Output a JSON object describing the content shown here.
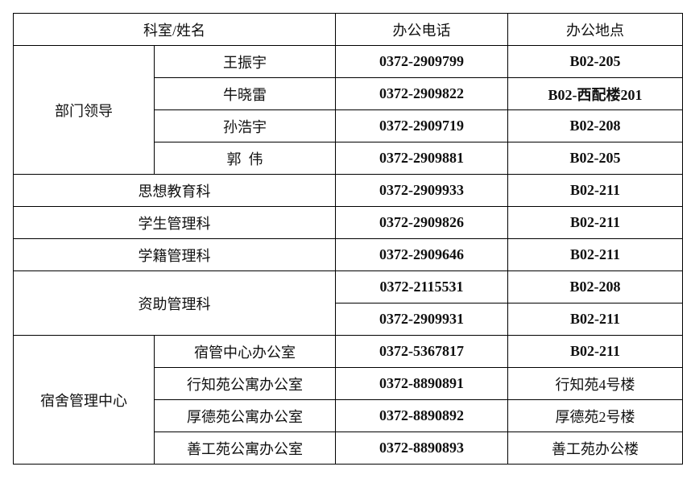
{
  "header": {
    "dept_name": "科室/姓名",
    "phone": "办公电话",
    "location": "办公地点"
  },
  "leaders": {
    "group": "部门领导",
    "rows": [
      {
        "name": "王振宇",
        "phone": "0372-2909799",
        "location": "B02-205"
      },
      {
        "name": "牛晓雷",
        "phone": "0372-2909822",
        "location": "B02-西配楼201"
      },
      {
        "name": "孙浩宇",
        "phone": "0372-2909719",
        "location": "B02-208"
      },
      {
        "name": "郭  伟",
        "phone": "0372-2909881",
        "location": "B02-205"
      }
    ]
  },
  "sections": [
    {
      "name": "思想教育科",
      "phone": "0372-2909933",
      "location": "B02-211"
    },
    {
      "name": "学生管理科",
      "phone": "0372-2909826",
      "location": "B02-211"
    },
    {
      "name": "学籍管理科",
      "phone": "0372-2909646",
      "location": "B02-211"
    }
  ],
  "aid": {
    "name": "资助管理科",
    "rows": [
      {
        "phone": "0372-2115531",
        "location": "B02-208"
      },
      {
        "phone": "0372-2909931",
        "location": "B02-211"
      }
    ]
  },
  "dorm": {
    "group": "宿舍管理中心",
    "rows": [
      {
        "name": "宿管中心办公室",
        "phone": "0372-5367817",
        "location": "B02-211"
      },
      {
        "name": "行知苑公寓办公室",
        "phone": "0372-8890891",
        "location": "行知苑4号楼"
      },
      {
        "name": "厚德苑公寓办公室",
        "phone": "0372-8890892",
        "location": "厚德苑2号楼"
      },
      {
        "name": "善工苑公寓办公室",
        "phone": "0372-8890893",
        "location": "善工苑办公楼"
      }
    ]
  }
}
